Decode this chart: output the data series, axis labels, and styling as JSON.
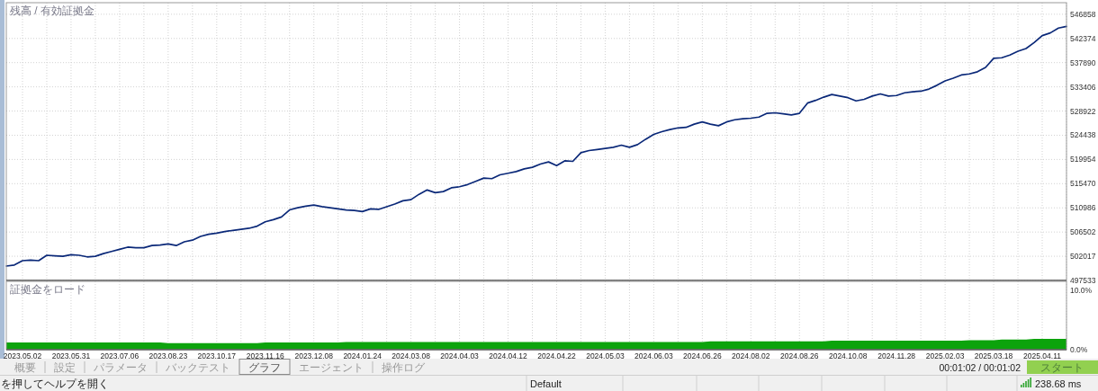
{
  "chart_data": [
    {
      "type": "line",
      "title": "残高 / 有効証拠金",
      "categories": [
        null,
        null,
        "2023.05.02",
        null,
        null,
        null,
        null,
        null,
        "2023.05.31",
        null,
        null,
        null,
        null,
        null,
        "2023.07.06",
        null,
        null,
        null,
        null,
        null,
        "2023.08.23",
        null,
        null,
        null,
        null,
        null,
        "2023.10.17",
        null,
        null,
        null,
        null,
        null,
        "2023.11.16",
        null,
        null,
        null,
        null,
        null,
        "2023.12.08",
        null,
        null,
        null,
        null,
        null,
        "2024.01.24",
        null,
        null,
        null,
        null,
        null,
        "2024.03.08",
        null,
        null,
        null,
        null,
        null,
        "2024.04.03",
        null,
        null,
        null,
        null,
        null,
        "2024.04.12",
        null,
        null,
        null,
        null,
        null,
        "2024.04.22",
        null,
        null,
        null,
        null,
        null,
        "2024.05.03",
        null,
        null,
        null,
        null,
        null,
        "2024.06.03",
        null,
        null,
        null,
        null,
        null,
        "2024.06.26",
        null,
        null,
        null,
        null,
        null,
        "2024.08.02",
        null,
        null,
        null,
        null,
        null,
        "2024.08.26",
        null,
        null,
        null,
        null,
        null,
        "2024.10.08",
        null,
        null,
        null,
        null,
        null,
        "2024.11.28",
        null,
        null,
        null,
        null,
        null,
        "2025.02.03",
        null,
        null,
        null,
        null,
        null,
        "2025.03.18",
        null,
        null,
        null,
        null,
        null,
        "2025.04.11",
        null,
        null,
        null
      ],
      "series": [
        {
          "color": "#0a2878",
          "values": [
            500200,
            500400,
            501200,
            501300,
            501200,
            502200,
            502100,
            502000,
            502300,
            502200,
            501900,
            502000,
            502500,
            502900,
            503300,
            503700,
            503600,
            503600,
            504000,
            504100,
            504300,
            504000,
            504700,
            505000,
            505700,
            506100,
            506300,
            506600,
            506800,
            507000,
            507200,
            507600,
            508400,
            508800,
            509300,
            510600,
            511000,
            511300,
            511500,
            511200,
            511000,
            510800,
            510600,
            510500,
            510300,
            510800,
            510700,
            511200,
            511700,
            512300,
            512500,
            513500,
            514300,
            513800,
            514000,
            514700,
            514900,
            515300,
            515900,
            516500,
            516400,
            517100,
            517400,
            517700,
            518200,
            518500,
            519100,
            519500,
            518800,
            519700,
            519600,
            521200,
            521600,
            521800,
            522000,
            522200,
            522600,
            522200,
            522700,
            523700,
            524600,
            525100,
            525500,
            525800,
            525900,
            526500,
            526900,
            526500,
            526200,
            526900,
            527300,
            527500,
            527600,
            527800,
            528500,
            528600,
            528400,
            528200,
            528500,
            530400,
            530900,
            531500,
            532000,
            531700,
            531400,
            530800,
            531100,
            531700,
            532100,
            531700,
            531800,
            532300,
            532500,
            532600,
            533000,
            533700,
            534500,
            535000,
            535600,
            535800,
            536200,
            537000,
            538700,
            538800,
            539300,
            540000,
            540500,
            541600,
            542900,
            543400,
            544300,
            544600
          ]
        }
      ],
      "ylim": [
        497533,
        549000
      ],
      "yticks": [
        497533,
        502017,
        506502,
        510986,
        515470,
        519954,
        524438,
        528922,
        533406,
        537890,
        542374,
        546858
      ],
      "grid": true,
      "tick_labels": "y"
    },
    {
      "type": "area",
      "title": "証拠金をロード",
      "categories": [
        null,
        null,
        "2023.05.02",
        null,
        null,
        null,
        null,
        null,
        "2023.05.31",
        null,
        null,
        null,
        null,
        null,
        "2023.07.06",
        null,
        null,
        null,
        null,
        null,
        "2023.08.23",
        null,
        null,
        null,
        null,
        null,
        "2023.10.17",
        null,
        null,
        null,
        null,
        null,
        "2023.11.16",
        null,
        null,
        null,
        null,
        null,
        "2023.12.08",
        null,
        null,
        null,
        null,
        null,
        "2024.01.24",
        null,
        null,
        null,
        null,
        null,
        "2024.03.08",
        null,
        null,
        null,
        null,
        null,
        "2024.04.03",
        null,
        null,
        null,
        null,
        null,
        "2024.04.12",
        null,
        null,
        null,
        null,
        null,
        "2024.04.22",
        null,
        null,
        null,
        null,
        null,
        "2024.05.03",
        null,
        null,
        null,
        null,
        null,
        "2024.06.03",
        null,
        null,
        null,
        null,
        null,
        "2024.06.26",
        null,
        null,
        null,
        null,
        null,
        "2024.08.02",
        null,
        null,
        null,
        null,
        null,
        "2024.08.26",
        null,
        null,
        null,
        null,
        null,
        "2024.10.08",
        null,
        null,
        null,
        null,
        null,
        "2024.11.28",
        null,
        null,
        null,
        null,
        null,
        "2025.02.03",
        null,
        null,
        null,
        null,
        null,
        "2025.03.18",
        null,
        null,
        null,
        null,
        null,
        "2025.04.11",
        null,
        null,
        null
      ],
      "values": [
        1.2,
        1.2,
        1.2,
        1.2,
        1.2,
        1.2,
        1.2,
        1.2,
        1.2,
        1.2,
        1.2,
        1.2,
        1.2,
        1.2,
        1.2,
        1.2,
        1.2,
        1.2,
        1.2,
        1.2,
        1.1,
        1.1,
        1.1,
        1.1,
        1.1,
        1.1,
        1.1,
        1.1,
        1.1,
        1.1,
        1.1,
        1.1,
        1.2,
        1.2,
        1.2,
        1.2,
        1.2,
        1.2,
        1.2,
        1.2,
        1.2,
        1.2,
        1.3,
        1.3,
        1.3,
        1.3,
        1.3,
        1.3,
        1.3,
        1.3,
        1.3,
        1.3,
        1.3,
        1.3,
        1.3,
        1.3,
        1.3,
        1.3,
        1.3,
        1.3,
        1.3,
        1.3,
        1.3,
        1.3,
        1.3,
        1.3,
        1.3,
        1.3,
        1.3,
        1.3,
        1.3,
        1.3,
        1.3,
        1.3,
        1.3,
        1.3,
        1.3,
        1.3,
        1.3,
        1.3,
        1.3,
        1.3,
        1.3,
        1.3,
        1.3,
        1.3,
        1.3,
        1.4,
        1.4,
        1.4,
        1.4,
        1.4,
        1.4,
        1.4,
        1.4,
        1.4,
        1.4,
        1.4,
        1.4,
        1.4,
        1.4,
        1.4,
        1.5,
        1.5,
        1.5,
        1.5,
        1.5,
        1.5,
        1.5,
        1.5,
        1.5,
        1.5,
        1.5,
        1.5,
        1.5,
        1.5,
        1.5,
        1.5,
        1.5,
        1.6,
        1.6,
        1.6,
        1.6,
        1.7,
        1.7,
        1.7,
        1.7,
        1.8,
        1.8,
        1.8,
        1.8,
        1.8
      ],
      "color": "#0ca30c",
      "ylim": [
        0,
        11.5
      ],
      "yticks": [
        {
          "value": 10,
          "label": "10.0%"
        },
        {
          "value": 0,
          "label": "0.0%"
        }
      ],
      "grid": "x"
    },
    {
      "type": "other",
      "annotations": [
        "概要",
        "設定",
        "パラメータ",
        "バックテスト",
        "グラフ",
        "エージェント",
        "操作ログ",
        "00:01:02 / 00:01:02",
        "スタート",
        "を押してヘルプを開く",
        "Default",
        "238.68 ms"
      ]
    }
  ]
}
